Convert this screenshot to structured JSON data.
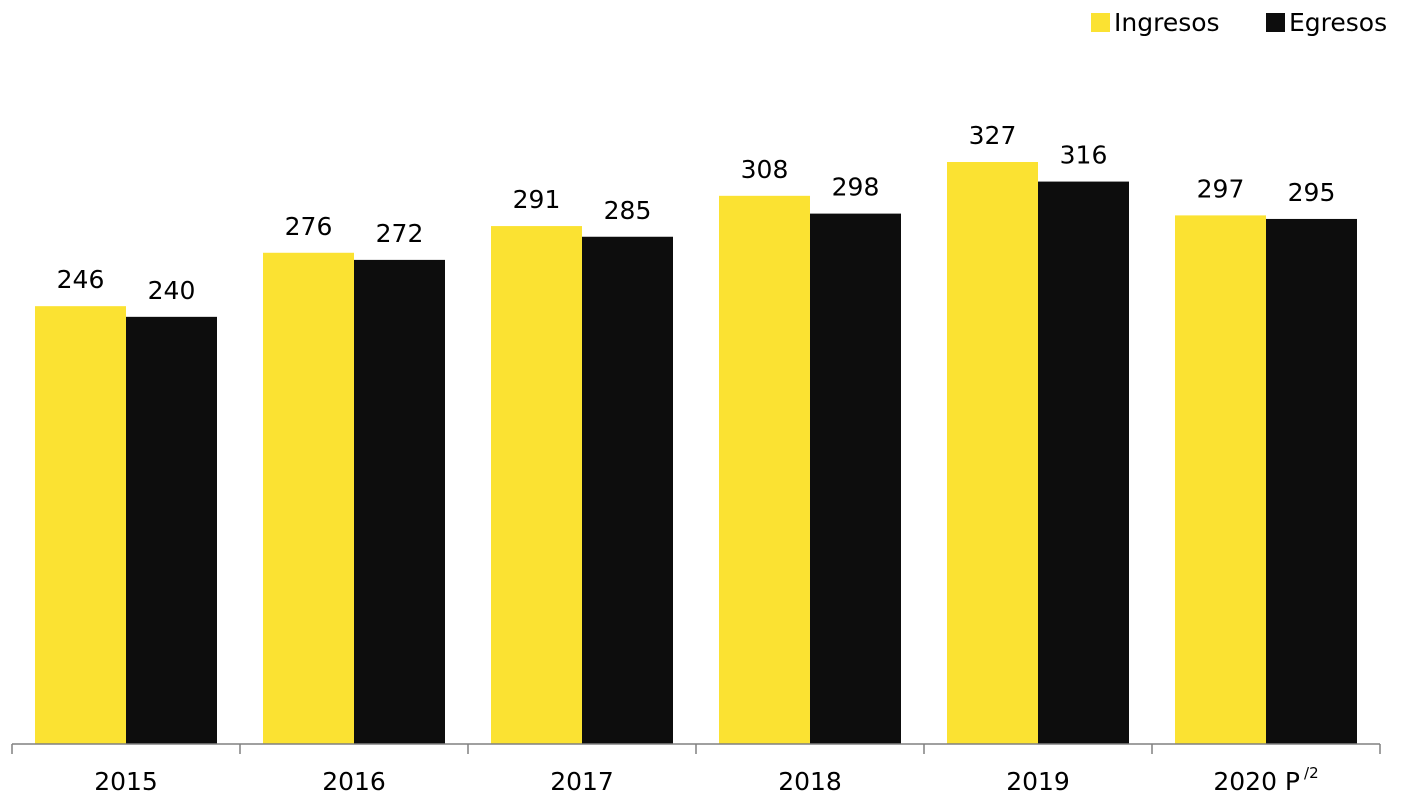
{
  "chart_data": {
    "type": "bar",
    "categories": [
      "2015",
      "2016",
      "2017",
      "2018",
      "2019",
      "2020 P"
    ],
    "category_superscripts": [
      "",
      "",
      "",
      "",
      "",
      "/2"
    ],
    "series": [
      {
        "name": "Ingresos",
        "color": "#FBE232",
        "values": [
          246,
          276,
          291,
          308,
          327,
          297
        ]
      },
      {
        "name": "Egresos",
        "color": "#0D0D0D",
        "values": [
          240,
          272,
          285,
          298,
          316,
          295
        ]
      }
    ],
    "title": "",
    "xlabel": "",
    "ylabel": "",
    "ylim": [
      0,
      327
    ],
    "grid": false,
    "legend_position": "top-right",
    "data_labels": true
  }
}
